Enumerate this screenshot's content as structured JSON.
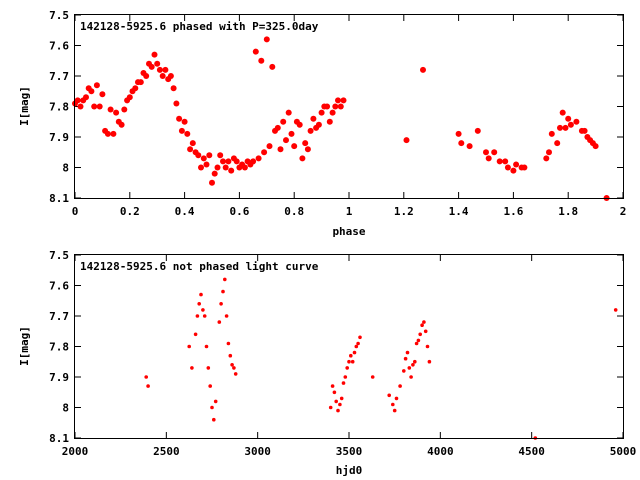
{
  "chart_data": [
    {
      "type": "scatter",
      "title": "142128-5925.6 phased with P=325.0day",
      "xlabel": "phase",
      "ylabel": "I[mag]",
      "xlim": [
        0,
        2
      ],
      "ylim": [
        7.5,
        8.1
      ],
      "y_inverted": true,
      "xticks": [
        "0",
        "0.2",
        "0.4",
        "0.6",
        "0.8",
        "1",
        "1.2",
        "1.4",
        "1.6",
        "1.8",
        "2"
      ],
      "yticks": [
        "7.5",
        "7.6",
        "7.7",
        "7.8",
        "7.9",
        "8",
        "8.1"
      ],
      "grid": false,
      "marker_color": "#ff0000",
      "series": [
        {
          "x": [
            0.0,
            0.01,
            0.02,
            0.03,
            0.04,
            0.05,
            0.06,
            0.07,
            0.08,
            0.09,
            0.1,
            0.11,
            0.12,
            0.13,
            0.14,
            0.15,
            0.16,
            0.17,
            0.18,
            0.19,
            0.2,
            0.21,
            0.22,
            0.23,
            0.24,
            0.25,
            0.26,
            0.27,
            0.28,
            0.29,
            0.3,
            0.31,
            0.32,
            0.33,
            0.34,
            0.35,
            0.36,
            0.37,
            0.38,
            0.39,
            0.4,
            0.41,
            0.42,
            0.43,
            0.44,
            0.45,
            0.46,
            0.47,
            0.48,
            0.49,
            0.5,
            0.51,
            0.52,
            0.53,
            0.54,
            0.55,
            0.56,
            0.57,
            0.58,
            0.59,
            0.6,
            0.61,
            0.62,
            0.63,
            0.64,
            0.65,
            0.66,
            0.67,
            0.68,
            0.69,
            0.7,
            0.71,
            0.72,
            0.73,
            0.74,
            0.75,
            0.76,
            0.77,
            0.78,
            0.79,
            0.8,
            0.81,
            0.82,
            0.83,
            0.84,
            0.85,
            0.86,
            0.87,
            0.88,
            0.89,
            0.9,
            0.91,
            0.92,
            0.93,
            0.94,
            0.95,
            0.96,
            0.97,
            0.98,
            1.21,
            1.27,
            1.4,
            1.41,
            1.44,
            1.47,
            1.5,
            1.51,
            1.53,
            1.55,
            1.57,
            1.58,
            1.6,
            1.61,
            1.63,
            1.64,
            1.72,
            1.73,
            1.74,
            1.76,
            1.77,
            1.78,
            1.79,
            1.8,
            1.81,
            1.83,
            1.85,
            1.86,
            1.87,
            1.88,
            1.89,
            1.9,
            1.94
          ],
          "y": [
            7.79,
            7.78,
            7.8,
            7.78,
            7.77,
            7.74,
            7.75,
            7.8,
            7.73,
            7.8,
            7.76,
            7.88,
            7.89,
            7.81,
            7.89,
            7.82,
            7.85,
            7.86,
            7.81,
            7.78,
            7.77,
            7.75,
            7.74,
            7.72,
            7.72,
            7.69,
            7.7,
            7.66,
            7.67,
            7.63,
            7.66,
            7.68,
            7.7,
            7.68,
            7.71,
            7.7,
            7.74,
            7.79,
            7.84,
            7.88,
            7.85,
            7.89,
            7.94,
            7.92,
            7.95,
            7.96,
            8.0,
            7.97,
            7.99,
            7.96,
            8.05,
            8.02,
            8.0,
            7.96,
            7.98,
            8.0,
            7.98,
            8.01,
            7.97,
            7.98,
            8.0,
            7.99,
            8.0,
            7.98,
            7.99,
            7.98,
            7.62,
            7.97,
            7.65,
            7.95,
            7.58,
            7.93,
            7.67,
            7.88,
            7.87,
            7.94,
            7.85,
            7.91,
            7.82,
            7.89,
            7.93,
            7.85,
            7.86,
            7.97,
            7.92,
            7.94,
            7.88,
            7.84,
            7.87,
            7.86,
            7.82,
            7.8,
            7.8,
            7.85,
            7.82,
            7.8,
            7.78,
            7.8,
            7.78,
            7.91,
            7.68,
            7.89,
            7.92,
            7.93,
            7.88,
            7.95,
            7.97,
            7.95,
            7.98,
            7.98,
            8.0,
            8.01,
            7.99,
            8.0,
            8.0,
            7.97,
            7.95,
            7.89,
            7.92,
            7.87,
            7.82,
            7.87,
            7.84,
            7.86,
            7.85,
            7.88,
            7.88,
            7.9,
            7.91,
            7.92,
            7.93,
            8.1
          ]
        }
      ]
    },
    {
      "type": "scatter",
      "title": "142128-5925.6 not phased light curve",
      "xlabel": "hjd0",
      "ylabel": "I[mag]",
      "xlim": [
        2000,
        5000
      ],
      "ylim": [
        7.5,
        8.1
      ],
      "y_inverted": true,
      "xticks": [
        "2000",
        "2500",
        "3000",
        "3500",
        "4000",
        "4500",
        "5000"
      ],
      "yticks": [
        "7.5",
        "7.6",
        "7.7",
        "7.8",
        "7.9",
        "8",
        "8.1"
      ],
      "grid": false,
      "marker_color": "#ff0000",
      "series": [
        {
          "x": [
            2390,
            2400,
            2625,
            2640,
            2660,
            2670,
            2680,
            2690,
            2700,
            2710,
            2720,
            2730,
            2740,
            2750,
            2760,
            2770,
            2790,
            2800,
            2810,
            2820,
            2830,
            2840,
            2850,
            2860,
            2870,
            2880,
            3400,
            3410,
            3420,
            3430,
            3440,
            3450,
            3460,
            3470,
            3480,
            3490,
            3500,
            3510,
            3520,
            3530,
            3540,
            3550,
            3560,
            3630,
            3720,
            3740,
            3750,
            3760,
            3780,
            3800,
            3810,
            3820,
            3830,
            3840,
            3850,
            3860,
            3870,
            3880,
            3890,
            3900,
            3910,
            3920,
            3930,
            3940,
            4520,
            4960
          ],
          "y": [
            7.9,
            7.93,
            7.8,
            7.87,
            7.76,
            7.7,
            7.66,
            7.63,
            7.68,
            7.7,
            7.8,
            7.87,
            7.93,
            8.0,
            8.04,
            7.98,
            7.72,
            7.66,
            7.62,
            7.58,
            7.7,
            7.79,
            7.83,
            7.86,
            7.87,
            7.89,
            8.0,
            7.93,
            7.95,
            7.98,
            8.01,
            7.99,
            7.97,
            7.92,
            7.9,
            7.87,
            7.85,
            7.83,
            7.85,
            7.82,
            7.8,
            7.79,
            7.77,
            7.9,
            7.96,
            7.99,
            8.01,
            7.97,
            7.93,
            7.88,
            7.84,
            7.82,
            7.87,
            7.9,
            7.86,
            7.85,
            7.79,
            7.78,
            7.76,
            7.73,
            7.72,
            7.75,
            7.8,
            7.85,
            8.1,
            7.68
          ]
        }
      ]
    }
  ]
}
